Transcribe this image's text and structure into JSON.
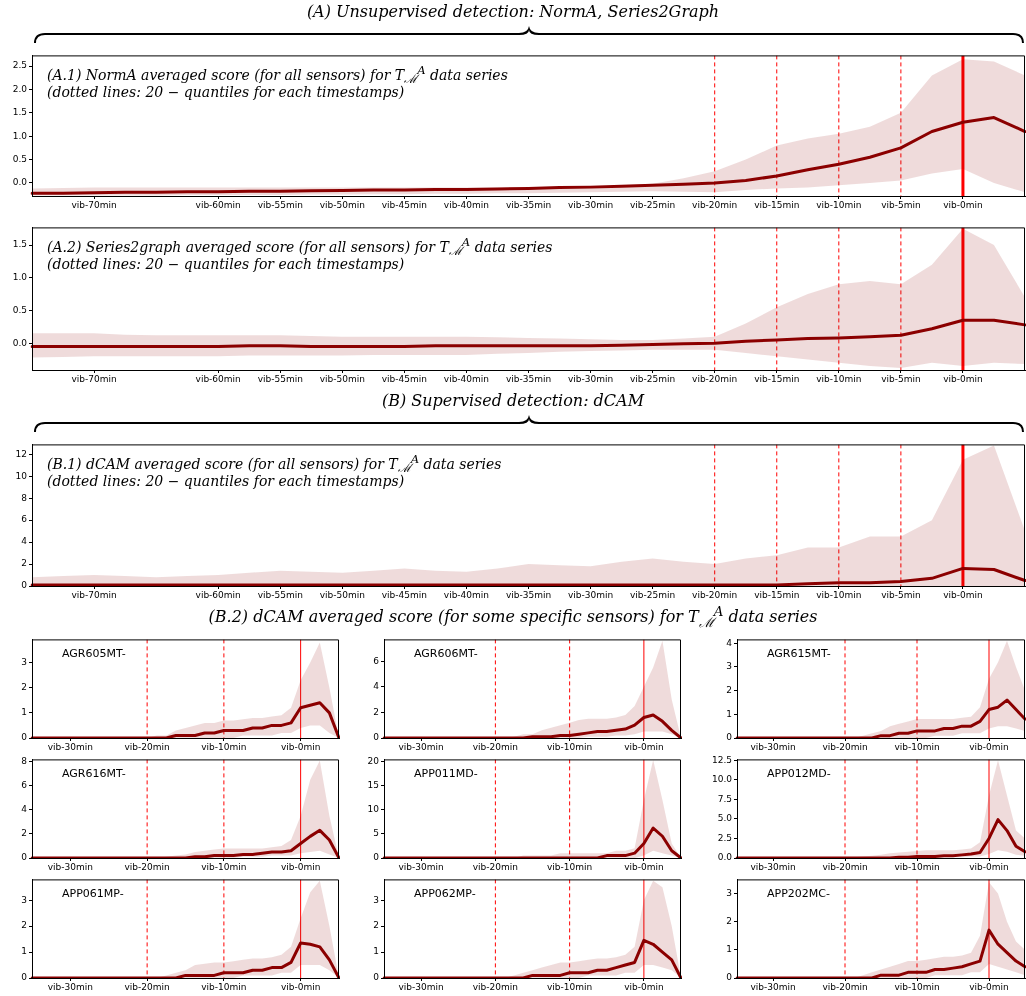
{
  "chart_data": [
    {
      "type": "line",
      "title": "(A) Unsupervised detection: NormA, Series2Graph",
      "annotations": [
        "(A.1) NormA averaged score (for all sensors) for T$_{ℳ}$$^{A}$ data series",
        "(dotted lines: 20 − quantiles for each timestamps)"
      ],
      "categories": [
        null,
        null,
        "vib-70min",
        null,
        null,
        null,
        "vib-60min",
        null,
        "vib-55min",
        null,
        "vib-50min",
        null,
        "vib-45min",
        null,
        "vib-40min",
        null,
        "vib-35min",
        null,
        "vib-30min",
        null,
        "vib-25min",
        null,
        "vib-20min",
        null,
        "vib-15min",
        null,
        "vib-10min",
        null,
        "vib-5min",
        null,
        "vib-0min",
        null,
        null
      ],
      "series": [
        {
          "color": "#8b0000",
          "values": [
            -0.22,
            -0.22,
            -0.21,
            -0.2,
            -0.2,
            -0.19,
            -0.19,
            -0.18,
            -0.18,
            -0.17,
            -0.16,
            -0.15,
            -0.15,
            -0.14,
            -0.14,
            -0.13,
            -0.12,
            -0.1,
            -0.09,
            -0.07,
            -0.05,
            -0.03,
            0.0,
            0.05,
            0.15,
            0.28,
            0.4,
            0.55,
            0.75,
            1.1,
            1.3,
            1.4,
            1.1
          ],
          "upper": [
            -0.12,
            -0.11,
            -0.1,
            -0.1,
            -0.1,
            -0.1,
            -0.1,
            -0.1,
            -0.1,
            -0.1,
            -0.1,
            -0.1,
            -0.1,
            -0.1,
            -0.1,
            -0.1,
            -0.1,
            -0.1,
            -0.08,
            -0.05,
            -0.02,
            0.1,
            0.25,
            0.5,
            0.8,
            0.95,
            1.05,
            1.2,
            1.5,
            2.3,
            2.65,
            2.6,
            2.3
          ],
          "lower": [
            -0.27,
            -0.27,
            -0.27,
            -0.27,
            -0.27,
            -0.26,
            -0.26,
            -0.26,
            -0.26,
            -0.25,
            -0.25,
            -0.24,
            -0.24,
            -0.23,
            -0.23,
            -0.22,
            -0.22,
            -0.21,
            -0.2,
            -0.19,
            -0.18,
            -0.19,
            -0.2,
            -0.15,
            -0.12,
            -0.1,
            -0.05,
            0.0,
            0.05,
            0.2,
            0.3,
            0.0,
            -0.2
          ]
        }
      ],
      "ylim": [
        -0.28,
        2.73
      ],
      "yticks": [
        {
          "value": 0,
          "label": "0.0"
        },
        {
          "value": 0.5,
          "label": "0.5"
        },
        {
          "value": 1,
          "label": "1.0"
        },
        {
          "value": 1.5,
          "label": "1.5"
        },
        {
          "value": 2,
          "label": "2.0"
        },
        {
          "value": 2.5,
          "label": "2.5"
        }
      ],
      "ref_lines": [
        {
          "axis": "x",
          "value": "vib-20min",
          "color": "#ff0000",
          "line_style": "dashed"
        },
        {
          "axis": "x",
          "value": "vib-15min",
          "color": "#ff0000",
          "line_style": "dashed"
        },
        {
          "axis": "x",
          "value": "vib-10min",
          "color": "#ff0000",
          "line_style": "dashed"
        },
        {
          "axis": "x",
          "value": "vib-5min",
          "color": "#ff0000",
          "line_style": "dashed"
        },
        {
          "axis": "x",
          "value": "vib-0min",
          "color": "#ff0000",
          "line_style": "solid"
        }
      ]
    },
    {
      "type": "line",
      "annotations": [
        "(A.2) Series2graph averaged score (for all sensors) for T$_{ℳ}$$^{A}$ data series",
        "(dotted lines: 20 − quantiles for each timestamps)"
      ],
      "categories": [
        null,
        null,
        "vib-70min",
        null,
        null,
        null,
        "vib-60min",
        null,
        "vib-55min",
        null,
        "vib-50min",
        null,
        "vib-45min",
        null,
        "vib-40min",
        null,
        "vib-35min",
        null,
        "vib-30min",
        null,
        "vib-25min",
        null,
        "vib-20min",
        null,
        "vib-15min",
        null,
        "vib-10min",
        null,
        "vib-5min",
        null,
        "vib-0min",
        null,
        null
      ],
      "series": [
        {
          "color": "#8b0000",
          "values": [
            -0.05,
            -0.05,
            -0.05,
            -0.05,
            -0.05,
            -0.05,
            -0.05,
            -0.04,
            -0.04,
            -0.05,
            -0.05,
            -0.05,
            -0.05,
            -0.04,
            -0.04,
            -0.04,
            -0.04,
            -0.04,
            -0.04,
            -0.03,
            -0.02,
            -0.01,
            0.0,
            0.03,
            0.05,
            0.07,
            0.08,
            0.1,
            0.12,
            0.22,
            0.35,
            0.35,
            0.28
          ],
          "upper": [
            0.15,
            0.15,
            0.15,
            0.13,
            0.12,
            0.12,
            0.12,
            0.12,
            0.12,
            0.11,
            0.1,
            0.1,
            0.1,
            0.1,
            0.1,
            0.09,
            0.08,
            0.07,
            0.06,
            0.05,
            0.05,
            0.07,
            0.1,
            0.3,
            0.55,
            0.75,
            0.9,
            0.95,
            0.9,
            1.2,
            1.75,
            1.5,
            0.7
          ],
          "lower": [
            -0.22,
            -0.21,
            -0.2,
            -0.2,
            -0.2,
            -0.2,
            -0.2,
            -0.19,
            -0.19,
            -0.19,
            -0.19,
            -0.18,
            -0.18,
            -0.18,
            -0.18,
            -0.16,
            -0.15,
            -0.13,
            -0.12,
            -0.11,
            -0.1,
            -0.1,
            -0.1,
            -0.15,
            -0.2,
            -0.25,
            -0.3,
            -0.35,
            -0.38,
            -0.3,
            -0.35,
            -0.3,
            -0.32
          ]
        }
      ],
      "ylim": [
        -0.41,
        1.77
      ],
      "yticks": [
        {
          "value": 0,
          "label": "0.0"
        },
        {
          "value": 0.5,
          "label": "0.5"
        },
        {
          "value": 1,
          "label": "1.0"
        },
        {
          "value": 1.5,
          "label": "1.5"
        }
      ],
      "ref_lines": [
        {
          "axis": "x",
          "value": "vib-20min",
          "color": "#ff0000",
          "line_style": "dashed"
        },
        {
          "axis": "x",
          "value": "vib-15min",
          "color": "#ff0000",
          "line_style": "dashed"
        },
        {
          "axis": "x",
          "value": "vib-10min",
          "color": "#ff0000",
          "line_style": "dashed"
        },
        {
          "axis": "x",
          "value": "vib-5min",
          "color": "#ff0000",
          "line_style": "dashed"
        },
        {
          "axis": "x",
          "value": "vib-0min",
          "color": "#ff0000",
          "line_style": "solid"
        }
      ]
    },
    {
      "type": "line",
      "title": "(B) Supervised detection: dCAM",
      "annotations": [
        "(B.1) dCAM averaged score (for all sensors) for T$_{ℳ}$$^{A}$ data series",
        "(dotted lines: 20 − quantiles for each timestamps)"
      ],
      "categories": [
        null,
        null,
        "vib-70min",
        null,
        null,
        null,
        "vib-60min",
        null,
        "vib-55min",
        null,
        "vib-50min",
        null,
        "vib-45min",
        null,
        "vib-40min",
        null,
        "vib-35min",
        null,
        "vib-30min",
        null,
        "vib-25min",
        null,
        "vib-20min",
        null,
        "vib-15min",
        null,
        "vib-10min",
        null,
        "vib-5min",
        null,
        "vib-0min",
        null,
        null
      ],
      "series": [
        {
          "color": "#8b0000",
          "values": [
            0.1,
            0.1,
            0.1,
            0.1,
            0.1,
            0.1,
            0.1,
            0.1,
            0.1,
            0.1,
            0.1,
            0.1,
            0.1,
            0.1,
            0.1,
            0.1,
            0.1,
            0.1,
            0.1,
            0.1,
            0.1,
            0.1,
            0.1,
            0.1,
            0.1,
            0.2,
            0.3,
            0.3,
            0.4,
            0.7,
            1.6,
            1.5,
            0.5
          ],
          "upper": [
            0.8,
            0.9,
            1.0,
            0.9,
            0.8,
            0.9,
            1.0,
            1.2,
            1.4,
            1.3,
            1.2,
            1.4,
            1.6,
            1.4,
            1.3,
            1.6,
            2.0,
            1.9,
            1.8,
            2.2,
            2.5,
            2.2,
            2.0,
            2.5,
            2.8,
            3.5,
            3.5,
            4.5,
            4.5,
            6.0,
            11.5,
            12.8,
            5.0
          ],
          "lower": [
            0,
            0,
            0,
            0,
            0,
            0,
            0,
            0,
            0,
            0,
            0,
            0,
            0,
            0,
            0,
            0,
            0,
            0,
            0,
            0,
            0,
            0,
            0,
            0,
            0,
            0,
            0,
            0,
            0,
            0,
            0,
            0,
            0
          ]
        }
      ],
      "ylim": [
        0,
        12.9
      ],
      "yticks": [
        0,
        2,
        4,
        6,
        8,
        10,
        12
      ],
      "ref_lines": [
        {
          "axis": "x",
          "value": "vib-20min",
          "color": "#ff0000",
          "line_style": "dashed"
        },
        {
          "axis": "x",
          "value": "vib-15min",
          "color": "#ff0000",
          "line_style": "dashed"
        },
        {
          "axis": "x",
          "value": "vib-10min",
          "color": "#ff0000",
          "line_style": "dashed"
        },
        {
          "axis": "x",
          "value": "vib-5min",
          "color": "#ff0000",
          "line_style": "dashed"
        },
        {
          "axis": "x",
          "value": "vib-0min",
          "color": "#ff0000",
          "line_style": "solid"
        }
      ]
    },
    {
      "type": "line",
      "title": "(B.2) dCAM averaged score (for some specific sensors) for T$_{ℳ}$$^{A}$ data series",
      "annotations": [
        "AGR605MT-"
      ],
      "categories": [
        null,
        null,
        null,
        null,
        "vib-30min",
        null,
        null,
        null,
        null,
        null,
        null,
        null,
        "vib-20min",
        null,
        null,
        null,
        null,
        null,
        null,
        null,
        "vib-10min",
        null,
        null,
        null,
        null,
        null,
        null,
        null,
        "vib-0min",
        null,
        null,
        null,
        null
      ],
      "series": [
        {
          "color": "#8b0000",
          "values": [
            0,
            0,
            0,
            0,
            0,
            0,
            0,
            0,
            0,
            0,
            0,
            0,
            0,
            0,
            0,
            0.1,
            0.1,
            0.1,
            0.2,
            0.2,
            0.3,
            0.3,
            0.3,
            0.4,
            0.4,
            0.5,
            0.5,
            0.6,
            1.2,
            1.3,
            1.4,
            1.0,
            0
          ],
          "upper": [
            0,
            0,
            0,
            0,
            0,
            0,
            0,
            0,
            0,
            0,
            0,
            0,
            0,
            0.1,
            0.1,
            0.3,
            0.4,
            0.5,
            0.6,
            0.6,
            0.7,
            0.7,
            0.75,
            0.8,
            0.8,
            0.85,
            0.9,
            1.2,
            2.3,
            3.0,
            3.8,
            2.0,
            0
          ],
          "lower": [
            0,
            0,
            0,
            0,
            0,
            0,
            0,
            0,
            0,
            0,
            0,
            0,
            0,
            0,
            0,
            0,
            0,
            0,
            0,
            0,
            0,
            0,
            0.1,
            0.1,
            0.1,
            0.1,
            0.2,
            0.2,
            0.4,
            0.5,
            0.5,
            0.2,
            0
          ]
        }
      ],
      "ylim": [
        0,
        3.92
      ],
      "yticks": [
        0,
        1,
        2,
        3
      ],
      "ref_lines": [
        {
          "axis": "x",
          "value": "vib-20min",
          "color": "#ff0000",
          "line_style": "dashed"
        },
        {
          "axis": "x",
          "value": "vib-10min",
          "color": "#ff0000",
          "line_style": "dashed"
        },
        {
          "axis": "x",
          "value": "vib-0min",
          "color": "#ff0000",
          "line_style": "solid"
        }
      ]
    },
    {
      "type": "line",
      "annotations": [
        "AGR606MT-"
      ],
      "categories": [
        null,
        null,
        null,
        null,
        "vib-30min",
        null,
        null,
        null,
        null,
        null,
        null,
        null,
        "vib-20min",
        null,
        null,
        null,
        null,
        null,
        null,
        null,
        "vib-10min",
        null,
        null,
        null,
        null,
        null,
        null,
        null,
        "vib-0min",
        null,
        null,
        null,
        null
      ],
      "series": [
        {
          "color": "#8b0000",
          "values": [
            0,
            0,
            0,
            0,
            0,
            0,
            0,
            0,
            0,
            0,
            0,
            0,
            0,
            0,
            0,
            0,
            0.1,
            0.1,
            0.1,
            0.2,
            0.2,
            0.3,
            0.4,
            0.5,
            0.5,
            0.6,
            0.7,
            1.0,
            1.6,
            1.8,
            1.3,
            0.6,
            0
          ],
          "upper": [
            0,
            0,
            0,
            0,
            0,
            0,
            0,
            0,
            0,
            0,
            0,
            0,
            0,
            0,
            0.1,
            0.3,
            0.3,
            0.6,
            0.8,
            1.0,
            1.2,
            1.4,
            1.5,
            1.5,
            1.5,
            1.6,
            1.8,
            2.5,
            4.0,
            5.5,
            7.6,
            3.0,
            0
          ],
          "lower": [
            0,
            0,
            0,
            0,
            0,
            0,
            0,
            0,
            0,
            0,
            0,
            0,
            0,
            0,
            0,
            0,
            0,
            0,
            0,
            0,
            0,
            0,
            0.1,
            0.1,
            0.1,
            0.2,
            0.2,
            0.3,
            0.5,
            0.5,
            0.5,
            0.3,
            0
          ]
        }
      ],
      "ylim": [
        0,
        7.7
      ],
      "yticks": [
        0,
        2,
        4,
        6
      ],
      "ref_lines": [
        {
          "axis": "x",
          "value": "vib-20min",
          "color": "#ff0000",
          "line_style": "dashed"
        },
        {
          "axis": "x",
          "value": "vib-10min",
          "color": "#ff0000",
          "line_style": "dashed"
        },
        {
          "axis": "x",
          "value": "vib-0min",
          "color": "#ff0000",
          "line_style": "solid"
        }
      ]
    },
    {
      "type": "line",
      "annotations": [
        "AGR615MT-"
      ],
      "categories": [
        null,
        null,
        null,
        null,
        "vib-30min",
        null,
        null,
        null,
        null,
        null,
        null,
        null,
        "vib-20min",
        null,
        null,
        null,
        null,
        null,
        null,
        null,
        "vib-10min",
        null,
        null,
        null,
        null,
        null,
        null,
        null,
        "vib-0min",
        null,
        null,
        null,
        null
      ],
      "series": [
        {
          "color": "#8b0000",
          "values": [
            0,
            0,
            0,
            0,
            0,
            0,
            0,
            0,
            0,
            0,
            0,
            0,
            0,
            0,
            0,
            0,
            0.1,
            0.1,
            0.2,
            0.2,
            0.3,
            0.3,
            0.3,
            0.4,
            0.4,
            0.5,
            0.5,
            0.7,
            1.2,
            1.3,
            1.6,
            1.2,
            0.8
          ],
          "upper": [
            0,
            0,
            0,
            0,
            0,
            0,
            0,
            0,
            0,
            0,
            0,
            0,
            0,
            0,
            0.1,
            0.2,
            0.3,
            0.5,
            0.6,
            0.7,
            0.8,
            0.8,
            0.8,
            0.8,
            0.8,
            0.85,
            0.9,
            1.3,
            2.5,
            3.2,
            4.1,
            3.0,
            2.0
          ],
          "lower": [
            0,
            0,
            0,
            0,
            0,
            0,
            0,
            0,
            0,
            0,
            0,
            0,
            0,
            0,
            0,
            0,
            0,
            0,
            0,
            0,
            0,
            0,
            0.1,
            0.1,
            0.1,
            0.2,
            0.2,
            0.2,
            0.4,
            0.5,
            0.5,
            0.4,
            0.3
          ]
        }
      ],
      "ylim": [
        0,
        4.16
      ],
      "yticks": [
        0,
        1,
        2,
        3,
        4
      ],
      "ref_lines": [
        {
          "axis": "x",
          "value": "vib-20min",
          "color": "#ff0000",
          "line_style": "dashed"
        },
        {
          "axis": "x",
          "value": "vib-10min",
          "color": "#ff0000",
          "line_style": "dashed"
        },
        {
          "axis": "x",
          "value": "vib-0min",
          "color": "#ff0000",
          "line_style": "solid"
        }
      ]
    },
    {
      "type": "line",
      "annotations": [
        "AGR616MT-"
      ],
      "categories": [
        null,
        null,
        null,
        null,
        "vib-30min",
        null,
        null,
        null,
        null,
        null,
        null,
        null,
        "vib-20min",
        null,
        null,
        null,
        null,
        null,
        null,
        null,
        "vib-10min",
        null,
        null,
        null,
        null,
        null,
        null,
        null,
        "vib-0min",
        null,
        null,
        null,
        null
      ],
      "series": [
        {
          "color": "#8b0000",
          "values": [
            0,
            0,
            0,
            0,
            0,
            0,
            0,
            0,
            0,
            0,
            0,
            0,
            0,
            0,
            0,
            0,
            0,
            0.1,
            0.1,
            0.2,
            0.2,
            0.2,
            0.3,
            0.3,
            0.4,
            0.5,
            0.5,
            0.6,
            1.2,
            1.8,
            2.3,
            1.5,
            0
          ],
          "upper": [
            0,
            0,
            0,
            0,
            0,
            0,
            0,
            0,
            0,
            0,
            0,
            0,
            0,
            0,
            0.1,
            0.2,
            0.3,
            0.5,
            0.6,
            0.7,
            0.8,
            0.8,
            0.8,
            0.8,
            0.8,
            0.9,
            1.0,
            1.5,
            3.5,
            6.5,
            8.1,
            3.5,
            0
          ],
          "lower": [
            0,
            0,
            0,
            0,
            0,
            0,
            0,
            0,
            0,
            0,
            0,
            0,
            0,
            0,
            0,
            0,
            0,
            0,
            0,
            0,
            0,
            0,
            0.1,
            0.1,
            0.1,
            0.2,
            0.2,
            0.2,
            0.4,
            0.5,
            0.6,
            0.3,
            0
          ]
        }
      ],
      "ylim": [
        0,
        8.2
      ],
      "yticks": [
        0,
        2,
        4,
        6,
        8
      ],
      "ref_lines": [
        {
          "axis": "x",
          "value": "vib-20min",
          "color": "#ff0000",
          "line_style": "dashed"
        },
        {
          "axis": "x",
          "value": "vib-10min",
          "color": "#ff0000",
          "line_style": "dashed"
        },
        {
          "axis": "x",
          "value": "vib-0min",
          "color": "#ff0000",
          "line_style": "solid"
        }
      ]
    },
    {
      "type": "line",
      "annotations": [
        "APP011MD-"
      ],
      "categories": [
        null,
        null,
        null,
        null,
        "vib-30min",
        null,
        null,
        null,
        null,
        null,
        null,
        null,
        "vib-20min",
        null,
        null,
        null,
        null,
        null,
        null,
        null,
        "vib-10min",
        null,
        null,
        null,
        null,
        null,
        null,
        null,
        "vib-0min",
        null,
        null,
        null,
        null
      ],
      "series": [
        {
          "color": "#8b0000",
          "values": [
            0,
            0,
            0,
            0,
            0,
            0,
            0,
            0,
            0,
            0,
            0,
            0,
            0,
            0,
            0,
            0,
            0,
            0,
            0,
            0,
            0,
            0,
            0,
            0,
            0.5,
            0.5,
            0.5,
            1,
            3,
            6.2,
            4.5,
            1.5,
            0
          ],
          "upper": [
            0,
            0,
            0,
            0,
            0,
            0,
            0,
            0,
            0,
            0,
            0,
            0,
            0,
            0,
            0,
            0.5,
            0.5,
            0.5,
            0.5,
            1,
            1,
            1,
            1,
            1,
            1,
            1.5,
            1.5,
            2,
            12,
            20.3,
            12,
            3,
            0
          ],
          "lower": [
            0,
            0,
            0,
            0,
            0,
            0,
            0,
            0,
            0,
            0,
            0,
            0,
            0,
            0,
            0,
            0,
            0,
            0,
            0,
            0,
            0,
            0,
            0,
            0,
            0,
            0,
            0,
            0,
            0.5,
            1.5,
            1,
            0.5,
            0
          ]
        }
      ],
      "ylim": [
        0,
        20.4
      ],
      "yticks": [
        0,
        5,
        10,
        15,
        20
      ],
      "ref_lines": [
        {
          "axis": "x",
          "value": "vib-20min",
          "color": "#ff0000",
          "line_style": "dashed"
        },
        {
          "axis": "x",
          "value": "vib-10min",
          "color": "#ff0000",
          "line_style": "dashed"
        },
        {
          "axis": "x",
          "value": "vib-0min",
          "color": "#ff0000",
          "line_style": "solid"
        }
      ]
    },
    {
      "type": "line",
      "annotations": [
        "APP012MD-"
      ],
      "categories": [
        null,
        null,
        null,
        null,
        "vib-30min",
        null,
        null,
        null,
        null,
        null,
        null,
        null,
        "vib-20min",
        null,
        null,
        null,
        null,
        null,
        null,
        null,
        "vib-10min",
        null,
        null,
        null,
        null,
        null,
        null,
        null,
        "vib-0min",
        null,
        null,
        null,
        null
      ],
      "series": [
        {
          "color": "#8b0000",
          "values": [
            0,
            0,
            0,
            0,
            0,
            0,
            0,
            0,
            0,
            0,
            0,
            0,
            0,
            0,
            0,
            0,
            0,
            0,
            0.1,
            0.1,
            0.2,
            0.2,
            0.2,
            0.3,
            0.3,
            0.4,
            0.5,
            0.7,
            2.5,
            4.9,
            3.5,
            1.5,
            0.8
          ],
          "upper": [
            0,
            0,
            0,
            0,
            0,
            0,
            0,
            0,
            0,
            0,
            0,
            0,
            0,
            0.1,
            0.2,
            0.3,
            0.4,
            0.6,
            0.7,
            0.8,
            0.9,
            1.0,
            1.0,
            1.0,
            1.0,
            1.1,
            1.2,
            2.0,
            8.0,
            12.5,
            8.0,
            3.5,
            2.5
          ],
          "lower": [
            0,
            0,
            0,
            0,
            0,
            0,
            0,
            0,
            0,
            0,
            0,
            0,
            0,
            0,
            0,
            0,
            0,
            0,
            0,
            0,
            0,
            0,
            0.1,
            0.1,
            0.1,
            0.1,
            0.2,
            0.2,
            0.5,
            1.0,
            0.8,
            0.4,
            0.3
          ]
        }
      ],
      "ylim": [
        0,
        12.6
      ],
      "yticks": [
        {
          "value": 0,
          "label": "0.0"
        },
        {
          "value": 2.5,
          "label": "2.5"
        },
        {
          "value": 5,
          "label": "5.0"
        },
        {
          "value": 7.5,
          "label": "7.5"
        },
        {
          "value": 10,
          "label": "10.0"
        },
        {
          "value": 12.5,
          "label": "12.5"
        }
      ],
      "ref_lines": [
        {
          "axis": "x",
          "value": "vib-20min",
          "color": "#ff0000",
          "line_style": "dashed"
        },
        {
          "axis": "x",
          "value": "vib-10min",
          "color": "#ff0000",
          "line_style": "dashed"
        },
        {
          "axis": "x",
          "value": "vib-0min",
          "color": "#ff0000",
          "line_style": "solid"
        }
      ]
    },
    {
      "type": "line",
      "annotations": [
        "APP061MP-"
      ],
      "categories": [
        null,
        null,
        null,
        null,
        "vib-30min",
        null,
        null,
        null,
        null,
        null,
        null,
        null,
        "vib-20min",
        null,
        null,
        null,
        null,
        null,
        null,
        null,
        "vib-10min",
        null,
        null,
        null,
        null,
        null,
        null,
        null,
        "vib-0min",
        null,
        null,
        null,
        null
      ],
      "series": [
        {
          "color": "#8b0000",
          "values": [
            0,
            0,
            0,
            0,
            0,
            0,
            0,
            0,
            0,
            0,
            0,
            0,
            0,
            0,
            0,
            0,
            0.1,
            0.1,
            0.1,
            0.1,
            0.2,
            0.2,
            0.2,
            0.3,
            0.3,
            0.4,
            0.4,
            0.6,
            1.35,
            1.3,
            1.2,
            0.7,
            0
          ],
          "upper": [
            0,
            0,
            0,
            0,
            0,
            0,
            0,
            0,
            0,
            0,
            0,
            0,
            0,
            0,
            0.1,
            0.2,
            0.3,
            0.5,
            0.55,
            0.6,
            0.6,
            0.65,
            0.7,
            0.75,
            0.75,
            0.8,
            0.9,
            1.2,
            2.3,
            3.3,
            3.75,
            2.0,
            0
          ],
          "lower": [
            0,
            0,
            0,
            0,
            0,
            0,
            0,
            0,
            0,
            0,
            0,
            0,
            0,
            0,
            0,
            0,
            0,
            0,
            0,
            0,
            0,
            0,
            0.1,
            0.1,
            0.1,
            0.1,
            0.2,
            0.2,
            0.5,
            0.5,
            0.5,
            0.3,
            0
          ]
        }
      ],
      "ylim": [
        0,
        3.8
      ],
      "yticks": [
        0,
        1,
        2,
        3
      ],
      "ref_lines": [
        {
          "axis": "x",
          "value": "vib-20min",
          "color": "#ff0000",
          "line_style": "dashed"
        },
        {
          "axis": "x",
          "value": "vib-10min",
          "color": "#ff0000",
          "line_style": "dashed"
        },
        {
          "axis": "x",
          "value": "vib-0min",
          "color": "#ff0000",
          "line_style": "solid"
        }
      ]
    },
    {
      "type": "line",
      "annotations": [
        "APP062MP-"
      ],
      "categories": [
        null,
        null,
        null,
        null,
        "vib-30min",
        null,
        null,
        null,
        null,
        null,
        null,
        null,
        "vib-20min",
        null,
        null,
        null,
        null,
        null,
        null,
        null,
        "vib-10min",
        null,
        null,
        null,
        null,
        null,
        null,
        null,
        "vib-0min",
        null,
        null,
        null,
        null
      ],
      "series": [
        {
          "color": "#8b0000",
          "values": [
            0,
            0,
            0,
            0,
            0,
            0,
            0,
            0,
            0,
            0,
            0,
            0,
            0,
            0,
            0,
            0,
            0.1,
            0.1,
            0.1,
            0.1,
            0.2,
            0.2,
            0.2,
            0.3,
            0.3,
            0.4,
            0.5,
            0.6,
            1.45,
            1.3,
            1.0,
            0.7,
            0
          ],
          "upper": [
            0,
            0,
            0,
            0,
            0,
            0,
            0,
            0,
            0,
            0,
            0,
            0,
            0,
            0,
            0.1,
            0.2,
            0.3,
            0.4,
            0.5,
            0.6,
            0.6,
            0.65,
            0.7,
            0.75,
            0.75,
            0.8,
            0.9,
            1.2,
            3.0,
            3.75,
            3.5,
            2.0,
            0
          ],
          "lower": [
            0,
            0,
            0,
            0,
            0,
            0,
            0,
            0,
            0,
            0,
            0,
            0,
            0,
            0,
            0,
            0,
            0,
            0,
            0,
            0,
            0,
            0,
            0.1,
            0.1,
            0.1,
            0.1,
            0.2,
            0.2,
            0.5,
            0.5,
            0.4,
            0.3,
            0
          ]
        }
      ],
      "ylim": [
        0,
        3.8
      ],
      "yticks": [
        0,
        1,
        2,
        3
      ],
      "ref_lines": [
        {
          "axis": "x",
          "value": "vib-20min",
          "color": "#ff0000",
          "line_style": "dashed"
        },
        {
          "axis": "x",
          "value": "vib-10min",
          "color": "#ff0000",
          "line_style": "dashed"
        },
        {
          "axis": "x",
          "value": "vib-0min",
          "color": "#ff0000",
          "line_style": "solid"
        }
      ]
    },
    {
      "type": "line",
      "annotations": [
        "APP202MC-"
      ],
      "categories": [
        null,
        null,
        null,
        null,
        "vib-30min",
        null,
        null,
        null,
        null,
        null,
        null,
        null,
        "vib-20min",
        null,
        null,
        null,
        null,
        null,
        null,
        null,
        "vib-10min",
        null,
        null,
        null,
        null,
        null,
        null,
        null,
        "vib-0min",
        null,
        null,
        null,
        null
      ],
      "series": [
        {
          "color": "#8b0000",
          "values": [
            0,
            0,
            0,
            0,
            0,
            0,
            0,
            0,
            0,
            0,
            0,
            0,
            0,
            0,
            0,
            0,
            0.1,
            0.1,
            0.1,
            0.2,
            0.2,
            0.2,
            0.3,
            0.3,
            0.35,
            0.4,
            0.5,
            0.6,
            1.7,
            1.2,
            0.9,
            0.6,
            0.4
          ],
          "upper": [
            0,
            0,
            0,
            0,
            0,
            0,
            0,
            0,
            0,
            0,
            0,
            0,
            0,
            0,
            0.1,
            0.2,
            0.3,
            0.4,
            0.5,
            0.6,
            0.6,
            0.65,
            0.7,
            0.75,
            0.75,
            0.8,
            0.9,
            1.5,
            3.4,
            3.0,
            2.0,
            1.3,
            1.0
          ],
          "lower": [
            0,
            0,
            0,
            0,
            0,
            0,
            0,
            0,
            0,
            0,
            0,
            0,
            0,
            0,
            0,
            0,
            0,
            0,
            0,
            0,
            0,
            0,
            0.1,
            0.1,
            0.1,
            0.1,
            0.2,
            0.2,
            0.5,
            0.4,
            0.3,
            0.2,
            0.1
          ]
        }
      ],
      "ylim": [
        0,
        3.5
      ],
      "yticks": [
        0,
        1,
        2,
        3
      ],
      "ref_lines": [
        {
          "axis": "x",
          "value": "vib-20min",
          "color": "#ff0000",
          "line_style": "dashed"
        },
        {
          "axis": "x",
          "value": "vib-10min",
          "color": "#ff0000",
          "line_style": "dashed"
        },
        {
          "axis": "x",
          "value": "vib-0min",
          "color": "#ff0000",
          "line_style": "solid"
        }
      ]
    }
  ]
}
